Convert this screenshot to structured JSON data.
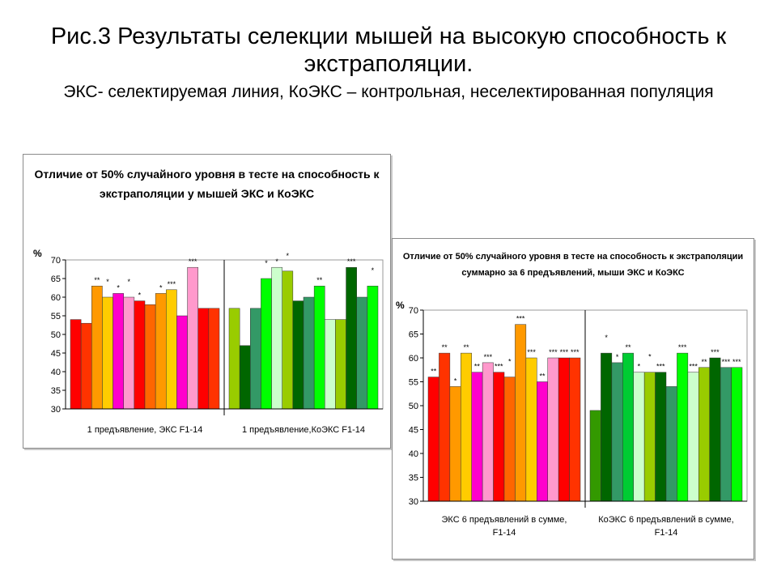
{
  "slide": {
    "title": "Рис.3 Результаты селекции мышей на высокую способность к экстраполяции.",
    "subtitle": "ЭКС- селектируемая линия, КоЭКС – контрольная, неселектированная популяция"
  },
  "chart_data": [
    {
      "type": "bar",
      "title": "Отличие от 50% случайного уровня в тесте на способность к экстраполяции у мышей ЭКС и КоЭКС",
      "ylabel": "%",
      "ylim": [
        30,
        70
      ],
      "yticks": [
        30,
        35,
        40,
        45,
        50,
        55,
        60,
        65,
        70
      ],
      "grid": false,
      "groups": [
        {
          "label": "1 предъявление, ЭКС F1-14",
          "values": [
            54,
            53,
            63,
            60,
            61,
            60,
            59,
            58,
            61,
            62,
            55,
            68,
            57,
            57
          ],
          "annotations": [
            "",
            "",
            "**",
            "*",
            "*",
            "*",
            "*",
            "",
            "*",
            "***",
            "",
            "***",
            "",
            ""
          ],
          "colors": [
            "#ff0000",
            "#ff3300",
            "#ff9900",
            "#ffcc00",
            "#ff00cc",
            "#ff99cc",
            "#ff0000",
            "#ff6600",
            "#ff9900",
            "#ffcc00",
            "#ff00cc",
            "#ff99cc",
            "#ff0000",
            "#ff3300"
          ]
        },
        {
          "label": "1 предъявление,КоЭКС F1-14",
          "values": [
            57,
            47,
            57,
            65,
            68,
            67,
            59,
            60,
            63,
            54,
            54,
            68,
            60,
            63
          ],
          "annotations": [
            "",
            "",
            "",
            "*",
            "*",
            "*",
            "",
            "",
            "**",
            "",
            "",
            "***",
            "",
            "*"
          ],
          "colors": [
            "#99cc00",
            "#006600",
            "#339966",
            "#00ff00",
            "#ccffcc",
            "#99cc00",
            "#006600",
            "#339966",
            "#00ff00",
            "#ccffcc",
            "#99cc00",
            "#006600",
            "#339966",
            "#00ff00"
          ]
        }
      ]
    },
    {
      "type": "bar",
      "title": "Отличие от 50% случайного уровня в тесте на способность к экстраполяции суммарно за 6 предъявлений, мыши ЭКС и КоЭКС",
      "ylabel": "%",
      "ylim": [
        30,
        70
      ],
      "yticks": [
        30,
        35,
        40,
        45,
        50,
        55,
        60,
        65,
        70
      ],
      "grid": false,
      "groups": [
        {
          "label": "ЭКС 6 предъявлений в сумме, F1-14",
          "values": [
            56,
            61,
            54,
            61,
            57,
            59,
            57,
            56,
            67,
            60,
            55,
            60,
            60,
            60
          ],
          "annotations": [
            "**",
            "**",
            "*",
            "**",
            "**",
            "***",
            "***",
            "*",
            "***",
            "***",
            "**",
            "***",
            "***",
            "***"
          ],
          "colors": [
            "#ff0000",
            "#ff3300",
            "#ff9900",
            "#ffcc00",
            "#ff00cc",
            "#ff99cc",
            "#ff0000",
            "#ff6600",
            "#ff9900",
            "#ffcc00",
            "#ff00cc",
            "#ff99cc",
            "#ff0000",
            "#ff3300"
          ]
        },
        {
          "label": "КоЭКС 6 предъявлений в сумме, F1-14",
          "values": [
            49,
            61,
            59,
            61,
            57,
            57,
            57,
            54,
            61,
            57,
            58,
            60,
            58,
            58
          ],
          "annotations": [
            "",
            "*",
            "*",
            "**",
            "*",
            "*",
            "***",
            "",
            "***",
            "***",
            "**",
            "***",
            "***",
            "***"
          ],
          "colors": [
            "#339900",
            "#006600",
            "#339966",
            "#00cc33",
            "#ccffcc",
            "#99cc00",
            "#006600",
            "#339966",
            "#00ff00",
            "#ccffcc",
            "#99cc00",
            "#006600",
            "#339966",
            "#00ff00"
          ]
        }
      ]
    }
  ]
}
